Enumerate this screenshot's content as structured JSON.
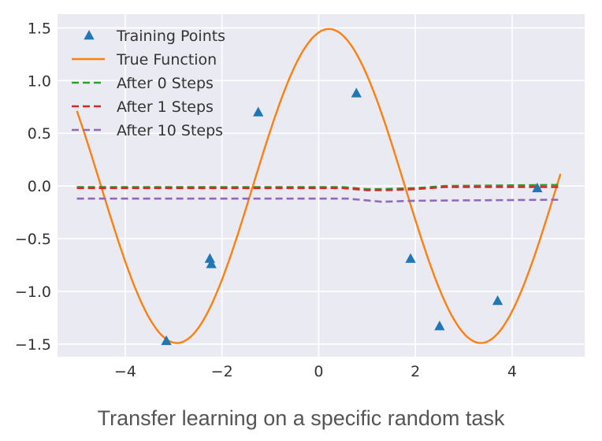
{
  "caption": "Transfer learning on a specific random task",
  "chart_data": {
    "type": "line",
    "title": "",
    "xlabel": "",
    "ylabel": "",
    "xlim": [
      -5.4,
      5.5
    ],
    "ylim": [
      -1.62,
      1.63
    ],
    "xticks": [
      -4,
      -2,
      0,
      2,
      4
    ],
    "xtick_labels": [
      "−4",
      "−2",
      "0",
      "2",
      "4"
    ],
    "yticks": [
      1.5,
      1.0,
      0.5,
      0.0,
      -0.5,
      -1.0,
      -1.5
    ],
    "ytick_labels": [
      "1.5",
      "1.0",
      "0.5",
      "0.0",
      "−0.5",
      "−1.0",
      "−1.5"
    ],
    "grid": true,
    "legend_position": "top-left",
    "background": "#eaeaf2",
    "series": [
      {
        "name": "Training Points",
        "kind": "scatter",
        "marker": "triangle",
        "color": "#1f77b4",
        "points": [
          [
            -3.15,
            -1.47
          ],
          [
            -2.25,
            -0.69
          ],
          [
            -2.22,
            -0.74
          ],
          [
            -1.25,
            0.7
          ],
          [
            0.78,
            0.88
          ],
          [
            1.9,
            -0.69
          ],
          [
            2.5,
            -1.33
          ],
          [
            3.7,
            -1.09
          ],
          [
            4.52,
            -0.02
          ]
        ]
      },
      {
        "name": "True Function",
        "kind": "line",
        "style": "solid",
        "color": "#ff7f0e",
        "amplitude": 1.49,
        "phase": 1.36,
        "x_range": [
          -5.0,
          5.0
        ]
      },
      {
        "name": "After 0 Steps",
        "kind": "line",
        "style": "dashed",
        "color": "#2ca02c",
        "points": [
          [
            -5.0,
            -0.01
          ],
          [
            -2.0,
            -0.01
          ],
          [
            0.5,
            -0.01
          ],
          [
            1.0,
            -0.03
          ],
          [
            1.3,
            -0.03
          ],
          [
            2.0,
            -0.02
          ],
          [
            2.6,
            0.0
          ],
          [
            5.0,
            0.01
          ]
        ]
      },
      {
        "name": "After 1 Steps",
        "kind": "line",
        "style": "dashed",
        "color": "#d62728",
        "points": [
          [
            -5.0,
            -0.02
          ],
          [
            -2.0,
            -0.02
          ],
          [
            0.5,
            -0.02
          ],
          [
            1.0,
            -0.04
          ],
          [
            1.4,
            -0.04
          ],
          [
            2.0,
            -0.03
          ],
          [
            2.6,
            -0.01
          ],
          [
            5.0,
            -0.01
          ]
        ]
      },
      {
        "name": "After 10 Steps",
        "kind": "line",
        "style": "dashed",
        "color": "#9467bd",
        "points": [
          [
            -5.0,
            -0.12
          ],
          [
            -2.0,
            -0.12
          ],
          [
            0.6,
            -0.12
          ],
          [
            1.3,
            -0.15
          ],
          [
            2.0,
            -0.14
          ],
          [
            5.0,
            -0.13
          ]
        ]
      }
    ]
  }
}
